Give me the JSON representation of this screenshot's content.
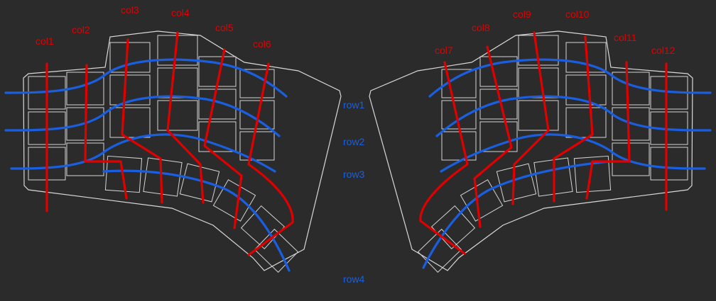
{
  "diagram": {
    "colors": {
      "background": "#2b2b2b",
      "column_wire": "#e00000",
      "row_wire": "#1a5fe0",
      "outline": "#d9d9d9"
    },
    "column_labels": [
      "col1",
      "col2",
      "col3",
      "col4",
      "col5",
      "col6",
      "col7",
      "col8",
      "col9",
      "col10",
      "col11",
      "col12"
    ],
    "row_labels": [
      "row1",
      "row2",
      "row3",
      "row4"
    ]
  }
}
